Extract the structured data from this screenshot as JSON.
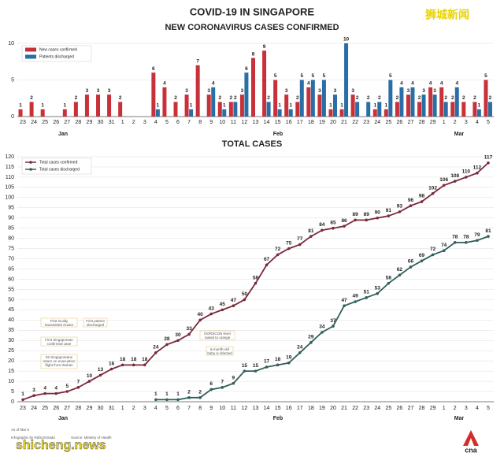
{
  "title": "COVID-19 IN SINGAPORE",
  "month_labels": [
    "Jan",
    "Feb",
    "Mar"
  ],
  "annotations": [
    "First locally transmitted cluster",
    "First patient discharged",
    "First Singaporean confirmed case",
    "92 Singaporeans return on evacuation flight from Wuhan",
    "DORSCON level raised to orange",
    "6-month-old baby is infected"
  ],
  "footer": [
    "As of Mar 5",
    "Infographic by Rafa Estrada",
    "Source: Ministry of Health"
  ],
  "watermark": [
    "狮城新闻",
    "shicheng.news",
    "cna"
  ],
  "chart_data": [
    {
      "type": "bar",
      "title": "NEW CORONAVIRUS CASES CONFIRMED",
      "categories": [
        "23",
        "24",
        "25",
        "26",
        "27",
        "28",
        "29",
        "30",
        "31",
        "1",
        "2",
        "3",
        "4",
        "5",
        "6",
        "7",
        "8",
        "9",
        "10",
        "11",
        "12",
        "13",
        "14",
        "15",
        "16",
        "17",
        "18",
        "19",
        "20",
        "21",
        "22",
        "23",
        "24",
        "25",
        "26",
        "27",
        "28",
        "29",
        "1",
        "2",
        "3",
        "4",
        "5"
      ],
      "series": [
        {
          "name": "New cases confirmed",
          "color": "#c8313a",
          "values": [
            1,
            2,
            1,
            0,
            1,
            2,
            3,
            3,
            3,
            2,
            0,
            0,
            6,
            4,
            2,
            3,
            7,
            3,
            2,
            2,
            3,
            8,
            9,
            5,
            3,
            2,
            4,
            3,
            1,
            1,
            3,
            0,
            1,
            1,
            2,
            3,
            2,
            4,
            4,
            2,
            2,
            2,
            5
          ]
        },
        {
          "name": "Patients discharged",
          "color": "#2a6ea6",
          "values": [
            0,
            0,
            0,
            0,
            0,
            0,
            0,
            0,
            0,
            0,
            0,
            0,
            1,
            0,
            0,
            1,
            0,
            4,
            1,
            2,
            6,
            0,
            2,
            1,
            1,
            5,
            5,
            5,
            3,
            10,
            2,
            2,
            2,
            5,
            4,
            4,
            3,
            3,
            2,
            4,
            0,
            1,
            2
          ]
        }
      ],
      "ylim": [
        0,
        10
      ],
      "yticks": [
        0,
        5,
        10
      ],
      "grid": true,
      "legend": "top-left"
    },
    {
      "type": "line",
      "title": "TOTAL CASES",
      "categories": [
        "23",
        "24",
        "25",
        "26",
        "27",
        "28",
        "29",
        "30",
        "31",
        "1",
        "2",
        "3",
        "4",
        "5",
        "6",
        "7",
        "8",
        "9",
        "10",
        "11",
        "12",
        "13",
        "14",
        "15",
        "16",
        "17",
        "18",
        "19",
        "20",
        "21",
        "22",
        "23",
        "24",
        "25",
        "26",
        "27",
        "28",
        "29",
        "1",
        "2",
        "3",
        "4",
        "5"
      ],
      "series": [
        {
          "name": "Total cases confirmed",
          "color": "#7a2a3a",
          "values": [
            1,
            3,
            4,
            4,
            5,
            7,
            10,
            13,
            16,
            18,
            18,
            18,
            24,
            28,
            30,
            33,
            40,
            43,
            45,
            47,
            50,
            58,
            67,
            72,
            75,
            77,
            81,
            84,
            85,
            86,
            89,
            89,
            90,
            91,
            93,
            96,
            98,
            102,
            106,
            108,
            110,
            112,
            117
          ]
        },
        {
          "name": "Total cases discharged",
          "color": "#2f5f5a",
          "values": [
            null,
            null,
            null,
            null,
            null,
            null,
            null,
            null,
            null,
            null,
            null,
            null,
            1,
            1,
            1,
            2,
            2,
            6,
            7,
            9,
            15,
            15,
            17,
            18,
            19,
            24,
            29,
            34,
            37,
            47,
            49,
            51,
            53,
            58,
            62,
            66,
            69,
            72,
            74,
            78,
            78,
            79,
            81
          ]
        }
      ],
      "ylim": [
        0,
        120
      ],
      "yticks": [
        0,
        5,
        10,
        15,
        20,
        25,
        30,
        35,
        40,
        45,
        50,
        55,
        60,
        65,
        70,
        75,
        80,
        85,
        90,
        95,
        100,
        105,
        110,
        115,
        120
      ],
      "grid": true,
      "legend": "top-left"
    }
  ]
}
